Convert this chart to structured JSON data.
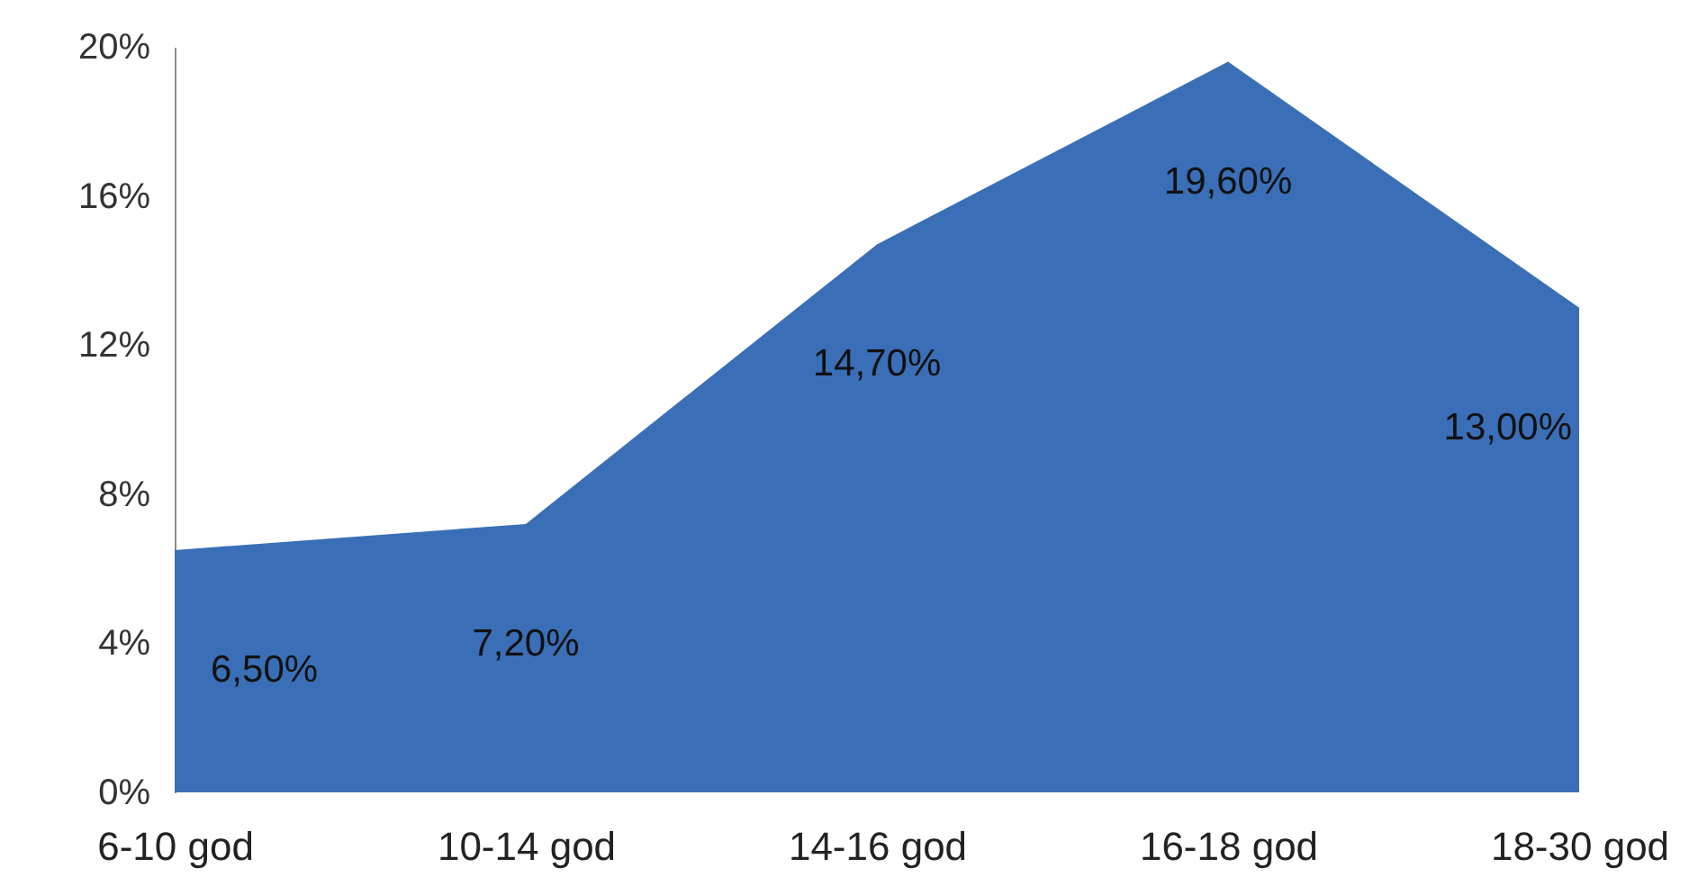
{
  "chart_data": {
    "type": "area",
    "categories": [
      "6-10 god",
      "10-14 god",
      "14-16 god",
      "16-18 god",
      "18-30 god"
    ],
    "values": [
      6.5,
      7.2,
      14.7,
      19.6,
      13.0
    ],
    "color": "#3a6fb7",
    "ylim": [
      0,
      20
    ],
    "yticks": [
      {
        "value": 0,
        "label": "0%"
      },
      {
        "value": 4,
        "label": "4%"
      },
      {
        "value": 8,
        "label": "8%"
      },
      {
        "value": 12,
        "label": "12%"
      },
      {
        "value": 16,
        "label": "16%"
      },
      {
        "value": 20,
        "label": "20%"
      }
    ],
    "value_labels": [
      "6,50%",
      "7,20%",
      "14,70%",
      "19,60%",
      "13,00%"
    ],
    "grid": false
  }
}
